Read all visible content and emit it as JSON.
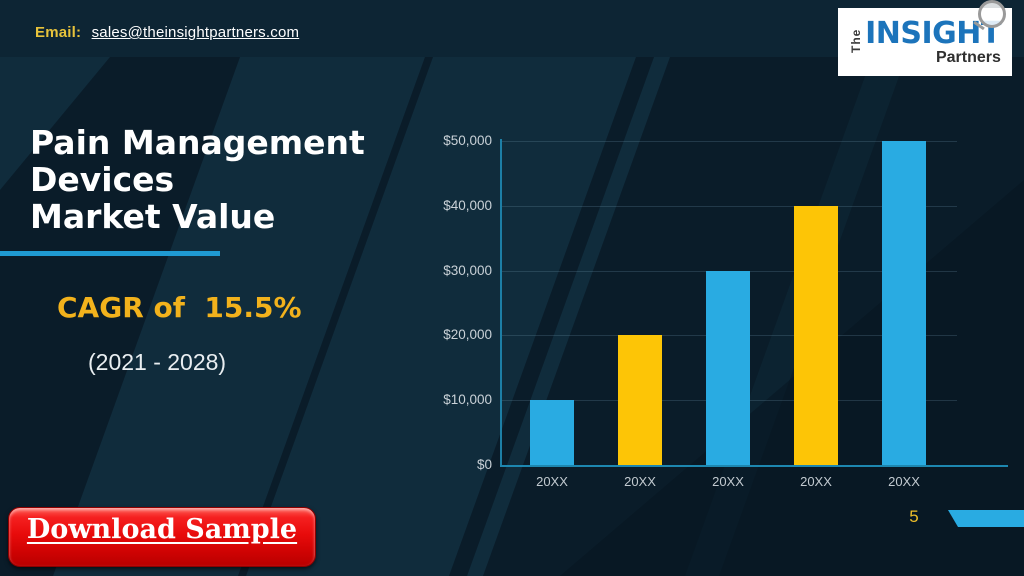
{
  "header": {
    "email_label": "Email:",
    "email_address": "sales@theinsightpartners.com",
    "logo": {
      "word_the": "The",
      "word_insight": "INSIGHT",
      "word_partners": "Partners"
    }
  },
  "content": {
    "title_lines": [
      "Pain Management",
      "Devices",
      "Market Value"
    ],
    "cagr_text": "CAGR of  15.5%",
    "period_text": "(2021 - 2028)",
    "download_button_label": "Download Sample",
    "page_number": "5"
  },
  "chart_data": {
    "type": "bar",
    "title": "Pain Management Devices Market Value",
    "categories": [
      "20XX",
      "20XX",
      "20XX",
      "20XX",
      "20XX"
    ],
    "values": [
      10000,
      20000,
      30000,
      40000,
      50000
    ],
    "bar_colors": [
      "#29abe2",
      "#fdc506",
      "#29abe2",
      "#fdc506",
      "#29abe2"
    ],
    "ylabel_ticks": [
      "$0",
      "$10,000",
      "$20,000",
      "$30,000",
      "$40,000",
      "$50,000"
    ],
    "ylim": [
      0,
      50000
    ],
    "grid": true,
    "legend": false,
    "xlabel": "",
    "ylabel": ""
  },
  "colors": {
    "background_dark": "#0a1c29",
    "background_light_band": "#102c3c",
    "accent_blue": "#29abe2",
    "accent_yellow": "#fdc506",
    "title_underline_blue": "#1f9ad2",
    "cagr_yellow": "#f2b21c",
    "button_red": "#e80b0b",
    "axis_teal": "#1d87b0"
  }
}
